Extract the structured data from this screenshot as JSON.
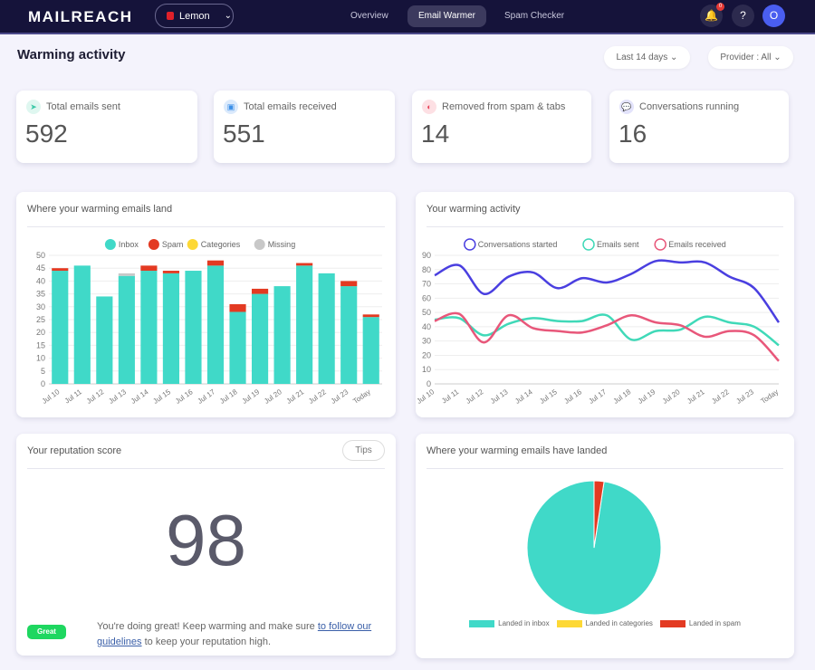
{
  "nav": {
    "logo": "MAILREACH",
    "account": "Lemon",
    "links": [
      "Overview",
      "Email Warmer",
      "Spam Checker"
    ],
    "active": "Email Warmer",
    "notifications": "0",
    "help": "?",
    "avatar": "O"
  },
  "page": {
    "title": "Warming activity",
    "range": "Last 14 days",
    "provider": "Provider : All"
  },
  "stats": [
    {
      "label": "Total emails sent",
      "value": "592",
      "icon": "paper-plane-icon",
      "color": "#3cc9a8"
    },
    {
      "label": "Total emails received",
      "value": "551",
      "icon": "inbox-icon",
      "color": "#3b8fe8"
    },
    {
      "label": "Removed from spam & tabs",
      "value": "14",
      "icon": "tabs-icon",
      "color": "#e8455a"
    },
    {
      "label": "Conversations running",
      "value": "16",
      "icon": "chat-icon",
      "color": "#5b5be0"
    }
  ],
  "reputation": {
    "title": "Your reputation score",
    "tips": "Tips",
    "score": "98",
    "badge": "Great",
    "msg_before": "You're doing great! Keep warming and make sure ",
    "link": "to follow our guidelines",
    "msg_after": " to keep your reputation high."
  },
  "chart_data": [
    {
      "type": "bar",
      "title": "Where your warming emails land",
      "stacked": true,
      "legend": "top",
      "grid": true,
      "ylim": [
        0,
        50
      ],
      "yticks": [
        0,
        5,
        10,
        15,
        20,
        25,
        30,
        35,
        40,
        45,
        50
      ],
      "categories": [
        "Jul 10",
        "Jul 11",
        "Jul 12",
        "Jul 13",
        "Jul 14",
        "Jul 15",
        "Jul 16",
        "Jul 17",
        "Jul 18",
        "Jul 19",
        "Jul 20",
        "Jul 21",
        "Jul 22",
        "Jul 23",
        "Today"
      ],
      "series": [
        {
          "name": "Inbox",
          "color": "#40d9c8",
          "values": [
            44,
            46,
            34,
            42,
            44,
            43,
            44,
            46,
            28,
            35,
            38,
            46,
            43,
            38,
            26
          ]
        },
        {
          "name": "Spam",
          "color": "#e33a22",
          "values": [
            1,
            0,
            0,
            0,
            2,
            1,
            0,
            2,
            3,
            2,
            0,
            1,
            0,
            2,
            1
          ]
        },
        {
          "name": "Categories",
          "color": "#fdd835",
          "values": [
            0,
            0,
            0,
            0,
            0,
            0,
            0,
            0,
            0,
            0,
            0,
            0,
            0,
            0,
            0
          ]
        },
        {
          "name": "Missing",
          "color": "#c8c8c8",
          "values": [
            0,
            0,
            0,
            1,
            0,
            0,
            0,
            0,
            0,
            0,
            0,
            0,
            0,
            0,
            0
          ]
        }
      ]
    },
    {
      "type": "line",
      "title": "Your warming activity",
      "legend": "top",
      "grid": true,
      "ylim": [
        0,
        90
      ],
      "yticks": [
        0,
        10,
        20,
        30,
        40,
        50,
        60,
        70,
        80,
        90
      ],
      "categories": [
        "Jul 10",
        "Jul 11",
        "Jul 12",
        "Jul 13",
        "Jul 14",
        "Jul 15",
        "Jul 16",
        "Jul 17",
        "Jul 18",
        "Jul 19",
        "Jul 20",
        "Jul 21",
        "Jul 22",
        "Jul 23",
        "Today"
      ],
      "series": [
        {
          "name": "Conversations started",
          "color": "#4a3fe0",
          "values": [
            76,
            83,
            63,
            75,
            78,
            67,
            74,
            71,
            77,
            86,
            85,
            85,
            75,
            67,
            43
          ]
        },
        {
          "name": "Emails sent",
          "color": "#40d9b8",
          "values": [
            45,
            46,
            34,
            42,
            46,
            44,
            44,
            48,
            31,
            37,
            38,
            47,
            43,
            40,
            27
          ]
        },
        {
          "name": "Emails received",
          "color": "#e8577a",
          "values": [
            44,
            49,
            29,
            48,
            39,
            37,
            36,
            41,
            48,
            43,
            41,
            33,
            37,
            34,
            16
          ]
        }
      ]
    },
    {
      "type": "pie",
      "title": "Where your warming emails have landed",
      "legend": "bottom",
      "slices": [
        {
          "name": "Landed in inbox",
          "color": "#40d9c8",
          "value": 97.6
        },
        {
          "name": "Landed in categories",
          "color": "#fdd835",
          "value": 0
        },
        {
          "name": "Landed in spam",
          "color": "#e33a22",
          "value": 2.4
        }
      ]
    }
  ]
}
